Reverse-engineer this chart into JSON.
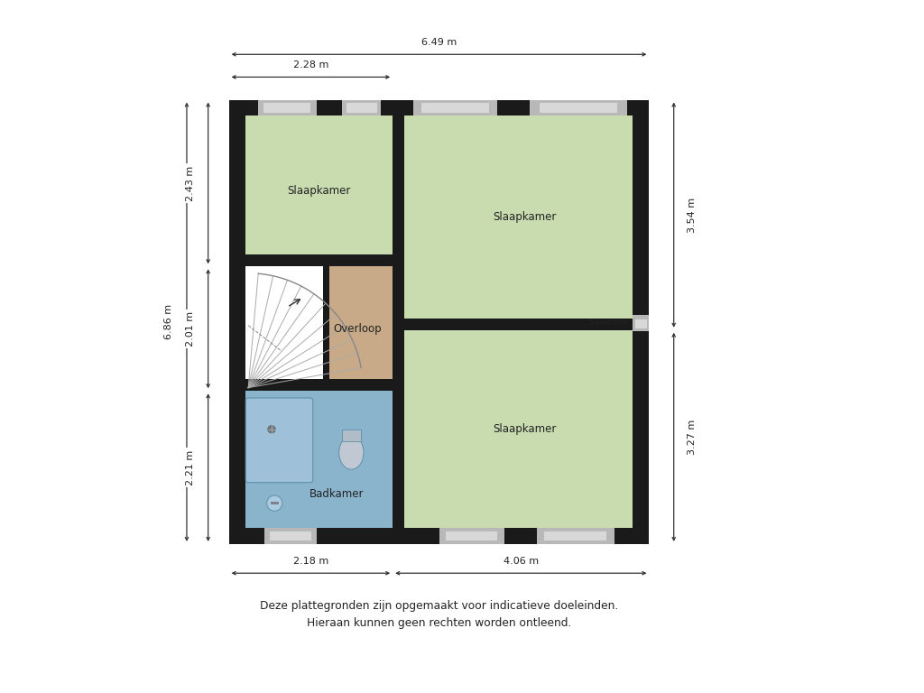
{
  "bg_color": "#ffffff",
  "wall_color": "#1a1a1a",
  "room_green": "#c8dcb0",
  "room_tan": "#c8aa88",
  "room_blue": "#8ab4cc",
  "title_line1": "Deze plattegronden zijn opgemaakt voor indicatieve doeleinden.",
  "title_line2": "Hieraan kunnen geen rechten worden ontleend.",
  "dim_top": "6.49 m",
  "dim_left": "6.86 m",
  "dim_top2": "2.28 m",
  "dim_right_top": "3.54 m",
  "dim_right_bot": "3.27 m",
  "dim_bot_left": "2.18 m",
  "dim_bot_right": "4.06 m",
  "dim_left_top": "2.43 m",
  "dim_left_mid": "2.01 m",
  "dim_left_bot": "2.21 m"
}
